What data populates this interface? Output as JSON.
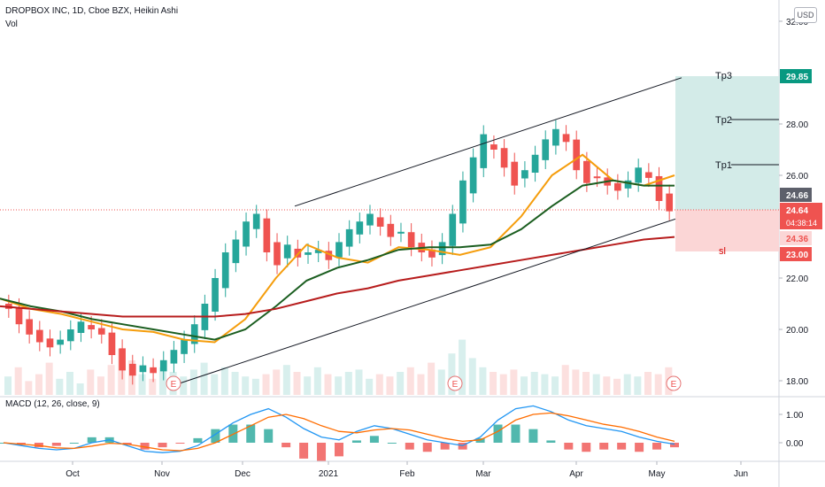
{
  "header": {
    "title": "DROPBOX INC, 1D, Cboe BZX, Heikin Ashi",
    "volume_label": "Vol",
    "currency_button": "USD"
  },
  "macd": {
    "label": "MACD (12, 26, close, 9)",
    "y_ticks": [
      "1.00",
      "0.00"
    ],
    "colors": {
      "macd": "#2196f3",
      "signal": "#ff6d00",
      "hist_up": "#26a69a",
      "hist_down": "#ef5350"
    }
  },
  "price_axis": {
    "ticks": [
      "32.00",
      "28.00",
      "26.00",
      "22.00",
      "20.00",
      "18.00"
    ],
    "flags": [
      {
        "text": "29.85",
        "color": "#089981"
      },
      {
        "text": "24.66",
        "color": "#5d606b"
      },
      {
        "text": "24.64",
        "color": "#ef5350"
      },
      {
        "text": "04:38:14",
        "color": "#ef5350"
      },
      {
        "text": "24.36",
        "color": "#ef5350"
      },
      {
        "text": "23.00",
        "color": "#ef5350"
      }
    ]
  },
  "levels": {
    "tp3": "Tp3",
    "tp2": "Tp2",
    "tp1": "Tp1",
    "sl": "sl",
    "colors": {
      "target_zone": "#d3ebe8",
      "stop_zone": "#fbd6d6",
      "tp_label": "#131722",
      "sl_label": "#d50000"
    }
  },
  "earnings_markers": [
    "E",
    "E",
    "E"
  ],
  "chart_data": {
    "type": "candlestick",
    "title": "DROPBOX INC, 1D, Cboe BZX, Heikin Ashi",
    "x_ticks": [
      "Oct",
      "Nov",
      "Dec",
      "2021",
      "Feb",
      "Mar",
      "Apr",
      "May",
      "Jun"
    ],
    "ylim": [
      17.6,
      32.3
    ],
    "trend_channel": {
      "upper": [
        [
          "Dec 14",
          24.8
        ],
        [
          "May 17",
          29.8
        ]
      ],
      "lower": [
        [
          "Nov 02",
          17.9
        ],
        [
          "May 07",
          24.3
        ]
      ]
    },
    "moving_averages": [
      {
        "color": "#f59d0c",
        "values": [
          21.2,
          20.8,
          20.6,
          20.3,
          20.0,
          19.9,
          19.6,
          19.5,
          20.4,
          22.0,
          23.3,
          22.8,
          22.6,
          23.2,
          23.1,
          22.9,
          23.2,
          24.4,
          26.0,
          26.8,
          25.8,
          25.6,
          26.0
        ]
      },
      {
        "color": "#1b5e20",
        "values": [
          21.2,
          20.9,
          20.7,
          20.4,
          20.2,
          20.0,
          19.8,
          19.6,
          20.0,
          20.9,
          21.9,
          22.4,
          22.7,
          23.1,
          23.2,
          23.2,
          23.3,
          23.9,
          24.8,
          25.6,
          25.8,
          25.6,
          25.6
        ]
      },
      {
        "color": "#b71c1c",
        "values": [
          20.9,
          20.8,
          20.7,
          20.6,
          20.5,
          20.5,
          20.5,
          20.5,
          20.6,
          20.8,
          21.1,
          21.4,
          21.6,
          21.9,
          22.1,
          22.3,
          22.5,
          22.7,
          22.9,
          23.1,
          23.3,
          23.5,
          23.6
        ]
      }
    ],
    "candle_closes": [
      20.8,
      20.2,
      19.8,
      19.5,
      19.3,
      19.6,
      20.0,
      20.3,
      20.0,
      19.8,
      19.0,
      18.4,
      18.2,
      18.6,
      18.3,
      18.8,
      19.2,
      19.6,
      20.2,
      21.0,
      22.0,
      23.0,
      23.5,
      24.2,
      24.5,
      23.0,
      22.5,
      23.3,
      22.8,
      23.0,
      23.1,
      22.7,
      23.4,
      23.9,
      24.2,
      24.5,
      24.0,
      23.6,
      23.8,
      23.2,
      23.0,
      22.8,
      23.4,
      24.5,
      25.8,
      26.7,
      27.6,
      27.0,
      26.3,
      25.6,
      26.2,
      26.8,
      27.4,
      27.8,
      27.3,
      26.2,
      25.7,
      25.9,
      25.6,
      25.4,
      25.8,
      26.3,
      25.9,
      25.0,
      24.6
    ],
    "volume_bars": [
      8,
      12,
      6,
      9,
      14,
      7,
      10,
      5,
      11,
      8,
      13,
      20,
      15,
      9,
      7,
      12,
      10,
      8,
      11,
      14,
      9,
      12,
      10,
      8,
      7,
      9,
      11,
      13,
      10,
      8,
      12,
      9,
      8,
      10,
      11,
      7,
      9,
      8,
      10,
      12,
      9,
      14,
      11,
      18,
      24,
      16,
      12,
      10,
      9,
      11,
      8,
      10,
      9,
      8,
      13,
      11,
      10,
      9,
      8,
      7,
      9,
      8,
      10,
      9,
      12
    ],
    "macd_line": [
      0.0,
      -0.1,
      -0.2,
      -0.25,
      -0.2,
      0.0,
      0.1,
      -0.1,
      -0.3,
      -0.35,
      -0.3,
      -0.1,
      0.3,
      0.7,
      1.0,
      1.2,
      0.9,
      0.5,
      0.2,
      0.1,
      0.4,
      0.6,
      0.5,
      0.3,
      0.1,
      0.0,
      -0.1,
      0.2,
      0.8,
      1.2,
      1.3,
      1.1,
      0.8,
      0.6,
      0.5,
      0.4,
      0.2,
      0.05,
      -0.05
    ],
    "signal_line": [
      0.0,
      -0.05,
      -0.1,
      -0.18,
      -0.2,
      -0.12,
      -0.02,
      -0.05,
      -0.15,
      -0.25,
      -0.28,
      -0.2,
      0.0,
      0.3,
      0.6,
      0.9,
      1.0,
      0.85,
      0.6,
      0.4,
      0.35,
      0.45,
      0.5,
      0.45,
      0.3,
      0.15,
      0.05,
      0.1,
      0.4,
      0.8,
      1.0,
      1.05,
      0.95,
      0.8,
      0.65,
      0.55,
      0.4,
      0.2,
      0.05
    ]
  }
}
